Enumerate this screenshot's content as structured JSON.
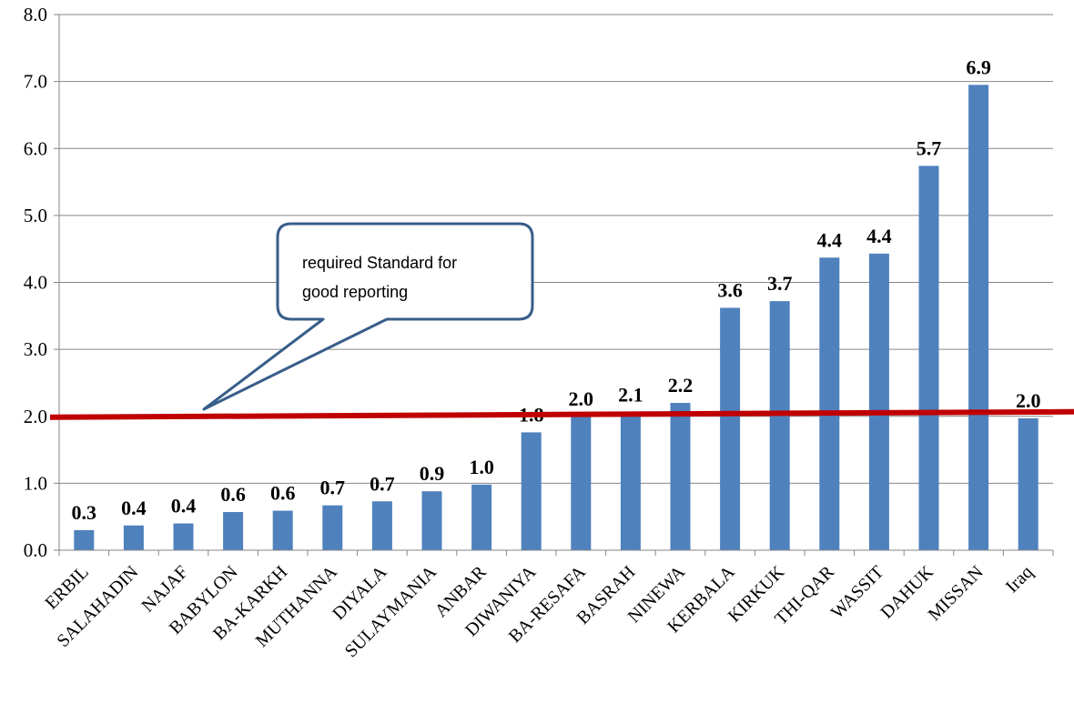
{
  "chart_data": {
    "type": "bar",
    "title": "",
    "xlabel": "",
    "ylabel": "",
    "ylim": [
      0,
      8
    ],
    "yticks": [
      "0.0",
      "1.0",
      "2.0",
      "3.0",
      "4.0",
      "5.0",
      "6.0",
      "7.0",
      "8.0"
    ],
    "grid": true,
    "legend": "none",
    "categories": [
      "ERBIL",
      "SALAHADIN",
      "NAJAF",
      "BABYLON",
      "BA-KARKH",
      "MUTHANNA",
      "DIYALA",
      "SULAYMANIA",
      "ANBAR",
      "DIWANIYA",
      "BA-RESAFA",
      "BASRAH",
      "NINEWA",
      "KERBALA",
      "KIRKUK",
      "THI-QAR",
      "WASSIT",
      "DAHUK",
      "MISSAN",
      "Iraq"
    ],
    "values": [
      0.3,
      0.37,
      0.4,
      0.57,
      0.59,
      0.67,
      0.73,
      0.88,
      0.98,
      1.76,
      2.0,
      2.06,
      2.2,
      3.62,
      3.72,
      4.37,
      4.43,
      5.74,
      6.95,
      1.97
    ],
    "value_labels": [
      "0.3",
      "0.4",
      "0.4",
      "0.6",
      "0.6",
      "0.7",
      "0.7",
      "0.9",
      "1.0",
      "1.8",
      "2.0",
      "2.1",
      "2.2",
      "3.6",
      "3.7",
      "4.4",
      "4.4",
      "5.7",
      "6.9",
      "2.0"
    ],
    "bar_color": "#4F81BD",
    "reference_line": {
      "value": 2.0,
      "color": "#C00000"
    },
    "callout": {
      "lines": [
        "required Standard for",
        "good reporting"
      ],
      "border_color": "#385D8A"
    }
  }
}
